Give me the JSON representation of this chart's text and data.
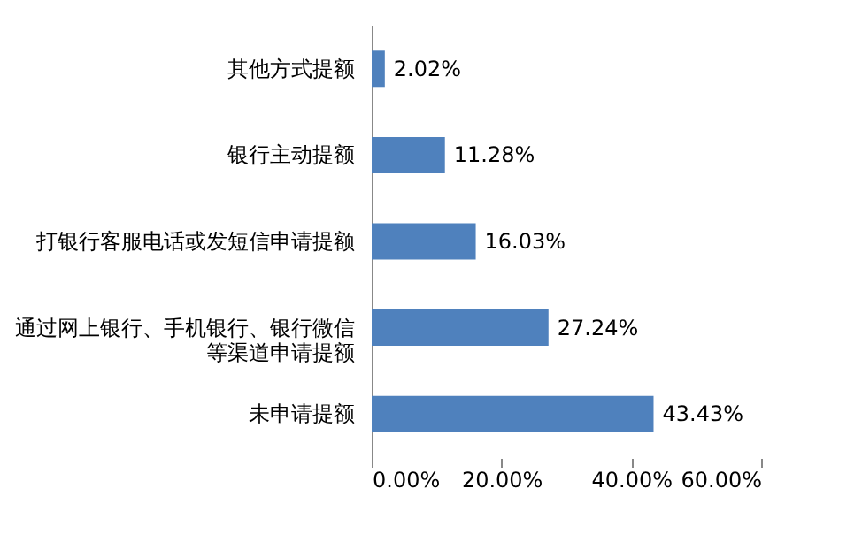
{
  "chart_data": {
    "type": "bar",
    "orientation": "horizontal",
    "categories": [
      "其他方式提额",
      "银行主动提额",
      "打银行客服电话或发短信申请提额",
      "通过网上银行、手机银行、银行微信等渠道申请提额",
      "未申请提额"
    ],
    "values": [
      2.02,
      11.28,
      16.03,
      27.24,
      43.43
    ],
    "value_labels": [
      "2.02%",
      "11.28%",
      "16.03%",
      "27.24%",
      "43.43%"
    ],
    "color": "#4f81bd",
    "xlim": [
      0,
      60
    ],
    "xticks": [
      {
        "value": 0,
        "label": "0.00%"
      },
      {
        "value": 20,
        "label": "20.00%"
      },
      {
        "value": 40,
        "label": "40.00%"
      },
      {
        "value": 60,
        "label": "60.00%"
      }
    ],
    "grid": false
  }
}
